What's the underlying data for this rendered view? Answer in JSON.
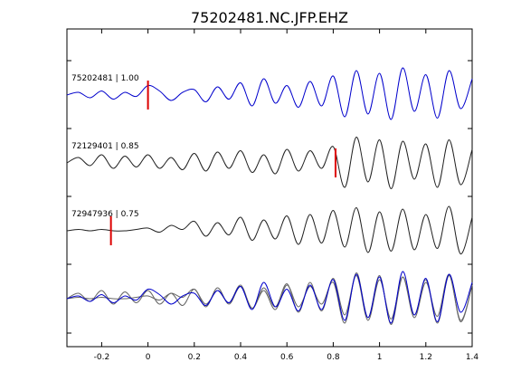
{
  "chart_data": {
    "type": "line",
    "title": "75202481.NC.JFP.EHZ",
    "xlabel": "",
    "ylabel": "",
    "xlim": [
      -0.35,
      1.4
    ],
    "xticks": [
      -0.2,
      0,
      0.2,
      0.4,
      0.6,
      0.8,
      1,
      1.2,
      1.4
    ],
    "xtick_labels": [
      "-0.2",
      "0",
      "0.2",
      "0.4",
      "0.6",
      "0.8",
      "1",
      "1.2",
      "1.4"
    ],
    "grid": false,
    "series": [
      {
        "name": "75202481 | 1.00",
        "color": "#0000cc",
        "pick_x": 0.0,
        "x": [
          -0.35,
          -0.3,
          -0.25,
          -0.2,
          -0.15,
          -0.1,
          -0.05,
          0.0,
          0.05,
          0.1,
          0.15,
          0.2,
          0.25,
          0.3,
          0.35,
          0.4,
          0.45,
          0.5,
          0.55,
          0.6,
          0.65,
          0.7,
          0.75,
          0.8,
          0.85,
          0.9,
          0.95,
          1.0,
          1.05,
          1.1,
          1.15,
          1.2,
          1.25,
          1.3,
          1.35,
          1.4
        ],
        "y": [
          0.0,
          0.1,
          -0.1,
          0.15,
          -0.15,
          0.1,
          -0.05,
          0.35,
          0.15,
          -0.2,
          0.1,
          0.2,
          -0.25,
          0.3,
          -0.15,
          0.45,
          -0.4,
          0.6,
          -0.3,
          0.35,
          -0.45,
          0.5,
          -0.4,
          0.7,
          -0.8,
          0.9,
          -0.7,
          0.8,
          -0.9,
          1.0,
          -0.6,
          0.75,
          -0.85,
          0.9,
          -0.5,
          0.6
        ]
      },
      {
        "name": "72129401 | 0.85",
        "color": "#222222",
        "pick_x": 0.81,
        "x": [
          -0.35,
          -0.3,
          -0.25,
          -0.2,
          -0.15,
          -0.1,
          -0.05,
          0.0,
          0.05,
          0.1,
          0.15,
          0.2,
          0.25,
          0.3,
          0.35,
          0.4,
          0.45,
          0.5,
          0.55,
          0.6,
          0.65,
          0.7,
          0.75,
          0.8,
          0.85,
          0.9,
          0.95,
          1.0,
          1.05,
          1.1,
          1.15,
          1.2,
          1.25,
          1.3,
          1.35,
          1.4
        ],
        "y": [
          0.0,
          0.2,
          -0.1,
          0.3,
          -0.2,
          0.25,
          -0.15,
          0.3,
          -0.2,
          0.2,
          -0.25,
          0.35,
          -0.3,
          0.4,
          -0.2,
          0.45,
          -0.35,
          0.3,
          -0.4,
          0.5,
          -0.3,
          0.45,
          -0.2,
          0.6,
          -0.9,
          0.95,
          -0.7,
          0.85,
          -0.95,
          0.8,
          -0.6,
          0.7,
          -0.9,
          0.85,
          -0.8,
          0.5
        ]
      },
      {
        "name": "72947936 | 0.75",
        "color": "#222222",
        "pick_x": -0.16,
        "x": [
          -0.35,
          -0.3,
          -0.25,
          -0.2,
          -0.15,
          -0.1,
          -0.05,
          0.0,
          0.05,
          0.1,
          0.15,
          0.2,
          0.25,
          0.3,
          0.35,
          0.4,
          0.45,
          0.5,
          0.55,
          0.6,
          0.65,
          0.7,
          0.75,
          0.8,
          0.85,
          0.9,
          0.95,
          1.0,
          1.05,
          1.1,
          1.15,
          1.2,
          1.25,
          1.3,
          1.35,
          1.4
        ],
        "y": [
          0.0,
          0.05,
          0.0,
          0.05,
          0.0,
          0.0,
          0.05,
          0.1,
          -0.05,
          0.2,
          0.05,
          0.35,
          -0.2,
          0.3,
          -0.15,
          0.5,
          -0.35,
          0.4,
          -0.3,
          0.55,
          -0.5,
          0.6,
          -0.45,
          0.75,
          -0.6,
          0.85,
          -0.8,
          0.7,
          -0.75,
          0.8,
          -0.7,
          0.6,
          -0.65,
          0.9,
          -0.85,
          0.5
        ]
      }
    ]
  }
}
